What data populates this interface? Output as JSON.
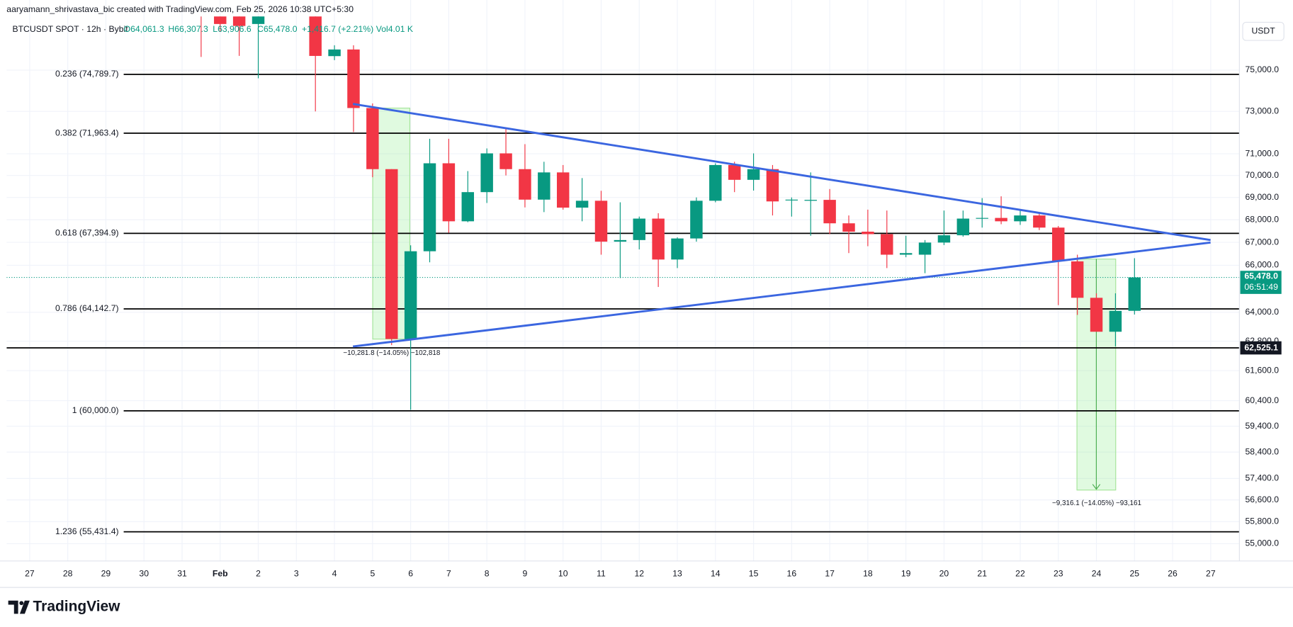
{
  "header": {
    "attribution": "aaryamann_shrivastava_bic created with TradingView.com, Feb 25, 2026 10:38 UTC+5:30",
    "symbol": "BTCUSDT SPOT · 12h · Bybit",
    "open": "O64,061.3",
    "high": "H66,307.3",
    "low": "L63,906.6",
    "close": "C65,478.0",
    "change": "+1,416.7 (+2.21%)",
    "volume": "Vol4.01 K",
    "currency": "USDT"
  },
  "footer": {
    "brand": "TradingView"
  },
  "chart_data": {
    "type": "candlestick",
    "log": true,
    "grid": true,
    "up_color": "#089981",
    "down_color": "#f23645",
    "categories": [
      "27",
      null,
      "28",
      null,
      "29",
      null,
      "30",
      null,
      "31",
      null,
      "Feb",
      null,
      "2",
      null,
      "3",
      null,
      "4",
      null,
      "5",
      null,
      "6",
      null,
      "7",
      null,
      "8",
      null,
      "9",
      null,
      "10",
      null,
      "11",
      null,
      "12",
      null,
      "13",
      null,
      "14",
      null,
      "15",
      null,
      "16",
      null,
      "17",
      null,
      "18",
      null,
      "19",
      null,
      "20",
      null,
      "21",
      null,
      "22",
      null,
      "23",
      null,
      "24",
      null,
      "25",
      null,
      "26",
      null,
      "27"
    ],
    "open": [
      null,
      null,
      null,
      null,
      null,
      null,
      null,
      null,
      null,
      78500,
      77900,
      77900,
      77300,
      null,
      null,
      78200,
      75690,
      76020,
      73160,
      70290,
      62890,
      66610,
      70560,
      67930,
      69240,
      71020,
      70290,
      68900,
      70140,
      68540,
      68850,
      67030,
      67100,
      68050,
      66250,
      67170,
      68850,
      70480,
      69800,
      70290,
      68880,
      68850,
      68890,
      67840,
      67470,
      67360,
      66460,
      66460,
      66990,
      67310,
      68050,
      68080,
      67930,
      68190,
      67650,
      66170,
      64610,
      63190,
      64061.3,
      null,
      null,
      null,
      null
    ],
    "high": [
      null,
      null,
      null,
      null,
      null,
      null,
      null,
      null,
      null,
      79000,
      78400,
      78600,
      79300,
      null,
      null,
      79000,
      76230,
      76230,
      73380,
      70290,
      66870,
      71700,
      71700,
      70200,
      71250,
      72220,
      71450,
      70630,
      70480,
      69880,
      69300,
      68780,
      68140,
      68290,
      67220,
      69000,
      70560,
      70630,
      71020,
      70480,
      69000,
      70140,
      69380,
      68190,
      68450,
      68410,
      67290,
      67100,
      68410,
      68410,
      68970,
      69050,
      68410,
      68330,
      67720,
      66460,
      64800,
      64800,
      66307.3,
      null,
      null,
      null,
      null
    ],
    "low": [
      null,
      null,
      null,
      null,
      null,
      null,
      null,
      null,
      null,
      75650,
      76900,
      75700,
      74600,
      null,
      null,
      73000,
      75490,
      72020,
      69920,
      62640,
      60040,
      66130,
      67420,
      67890,
      68750,
      70000,
      68550,
      68340,
      68450,
      67930,
      66460,
      65450,
      66690,
      65070,
      65880,
      67030,
      68780,
      69240,
      69310,
      68190,
      68140,
      67290,
      67360,
      66530,
      66830,
      65880,
      66350,
      65660,
      66880,
      67250,
      67650,
      67800,
      67770,
      67540,
      64300,
      63890,
      63190,
      62590,
      63906.6,
      null,
      null,
      null,
      null
    ],
    "close": [
      null,
      null,
      null,
      null,
      null,
      null,
      null,
      null,
      null,
      77900,
      77300,
      77200,
      78200,
      null,
      null,
      75700,
      76020,
      73160,
      70290,
      62890,
      66610,
      70560,
      67930,
      69240,
      71020,
      70290,
      68900,
      70140,
      68540,
      68850,
      67030,
      67100,
      68050,
      66250,
      67170,
      68850,
      70480,
      69800,
      70290,
      68820,
      68900,
      68890,
      67840,
      67470,
      67360,
      66460,
      66530,
      66990,
      67310,
      68050,
      68080,
      67930,
      68190,
      67650,
      66170,
      64610,
      63190,
      64060,
      65478.0,
      null,
      null,
      null,
      null
    ],
    "ylim": [
      54380,
      77680
    ],
    "yticks": [
      {
        "value": 75000,
        "label": "75,000.0"
      },
      {
        "value": 73000,
        "label": "73,000.0"
      },
      {
        "value": 71000,
        "label": "71,000.0"
      },
      {
        "value": 70000,
        "label": "70,000.0"
      },
      {
        "value": 69000,
        "label": "69,000.0"
      },
      {
        "value": 68000,
        "label": "68,000.0"
      },
      {
        "value": 67000,
        "label": "67,000.0"
      },
      {
        "value": 66000,
        "label": "66,000.0"
      },
      {
        "value": 64000,
        "label": "64,000.0"
      },
      {
        "value": 62800,
        "label": "62,800.0"
      },
      {
        "value": 61600,
        "label": "61,600.0"
      },
      {
        "value": 60400,
        "label": "60,400.0"
      },
      {
        "value": 59400,
        "label": "59,400.0"
      },
      {
        "value": 58400,
        "label": "58,400.0"
      },
      {
        "value": 57400,
        "label": "57,400.0"
      },
      {
        "value": 56600,
        "label": "56,600.0"
      },
      {
        "value": 55800,
        "label": "55,800.0"
      },
      {
        "value": 55000,
        "label": "55,000.0"
      }
    ],
    "fib_levels": [
      {
        "value": 74789.7,
        "label": "0.236 (74,789.7)"
      },
      {
        "value": 71963.4,
        "label": "0.382 (71,963.4)"
      },
      {
        "value": 67394.9,
        "label": "0.618 (67,394.9)"
      },
      {
        "value": 64142.7,
        "label": "0.786 (64,142.7)"
      },
      {
        "value": 60000.0,
        "label": "1 (60,000.0)"
      },
      {
        "value": 55431.4,
        "label": "1.236 (55,431.4)"
      }
    ],
    "hline": {
      "value": 62525.1,
      "label": "62,525.1"
    },
    "last_price": {
      "value": 65478.0,
      "label": "65,478.0"
    },
    "countdown": "06:51:49",
    "measurements": [
      "−10,281.8 (−14.05%) −102,818",
      "−9,316.1 (−14.05%) −93,161"
    ]
  }
}
